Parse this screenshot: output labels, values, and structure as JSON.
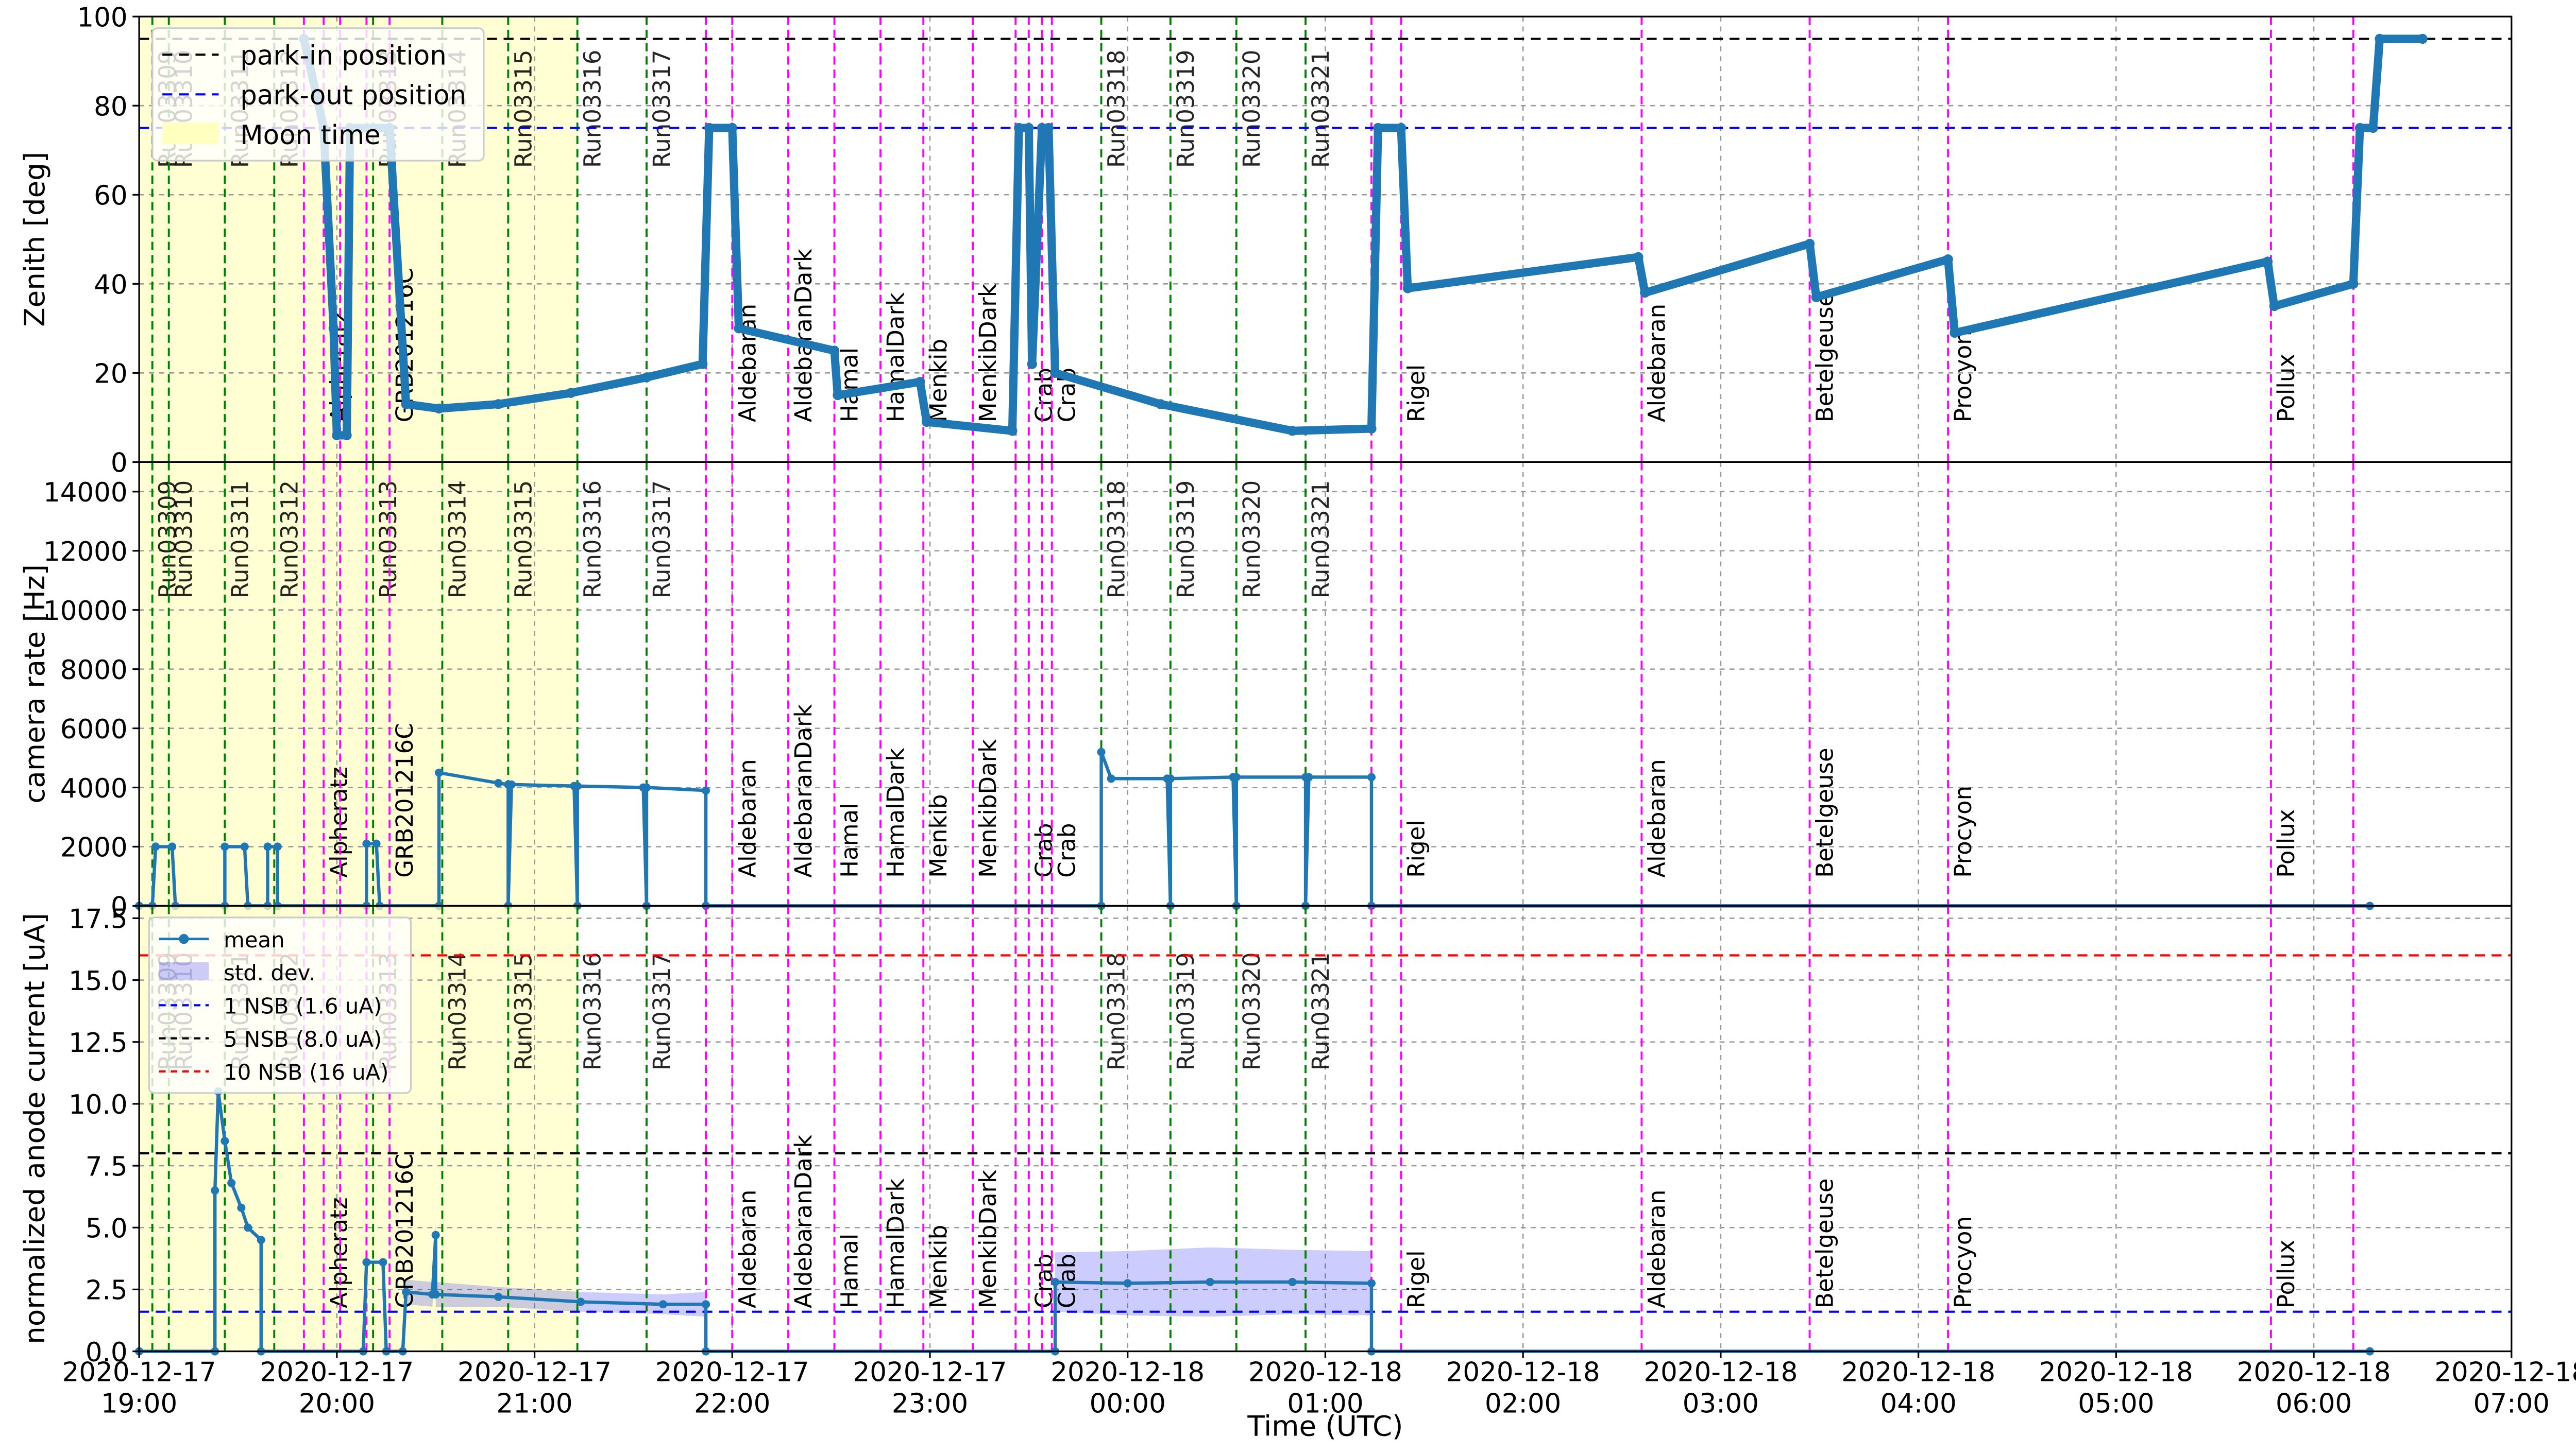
{
  "xaxis": {
    "label": "Time (UTC)",
    "lim": [
      "2020-12-17 19:00",
      "2020-12-18 07:00"
    ],
    "ticks": [
      {
        "value": "2020-12-17 19:00",
        "label": "2020-12-17\n19:00"
      },
      {
        "value": "2020-12-17 20:00",
        "label": "2020-12-17\n20:00"
      },
      {
        "value": "2020-12-17 21:00",
        "label": "2020-12-17\n21:00"
      },
      {
        "value": "2020-12-17 22:00",
        "label": "2020-12-17\n22:00"
      },
      {
        "value": "2020-12-17 23:00",
        "label": "2020-12-17\n23:00"
      },
      {
        "value": "2020-12-18 00:00",
        "label": "2020-12-18\n00:00"
      },
      {
        "value": "2020-12-18 01:00",
        "label": "2020-12-18\n01:00"
      },
      {
        "value": "2020-12-18 02:00",
        "label": "2020-12-18\n02:00"
      },
      {
        "value": "2020-12-18 03:00",
        "label": "2020-12-18\n03:00"
      },
      {
        "value": "2020-12-18 04:00",
        "label": "2020-12-18\n04:00"
      },
      {
        "value": "2020-12-18 05:00",
        "label": "2020-12-18\n05:00"
      },
      {
        "value": "2020-12-18 06:00",
        "label": "2020-12-18\n06:00"
      },
      {
        "value": "2020-12-18 07:00",
        "label": "2020-12-18\n07:00"
      }
    ]
  },
  "markers": {
    "moon": {
      "label": "Moon time",
      "start": "2020-12-17 19:00",
      "end": "2020-12-17 21:13",
      "color": "#ffffc0"
    },
    "runs": {
      "color": "green",
      "items": [
        {
          "x": "2020-12-17 19:04",
          "label": "Run03309"
        },
        {
          "x": "2020-12-17 19:09",
          "label": "Run03310"
        },
        {
          "x": "2020-12-17 19:26",
          "label": "Run03311"
        },
        {
          "x": "2020-12-17 19:41",
          "label": "Run03312"
        },
        {
          "x": "2020-12-17 20:11",
          "label": "Run03313"
        },
        {
          "x": "2020-12-17 20:32",
          "label": "Run03314"
        },
        {
          "x": "2020-12-17 20:52",
          "label": "Run03315"
        },
        {
          "x": "2020-12-17 21:13",
          "label": "Run03316"
        },
        {
          "x": "2020-12-17 21:34",
          "label": "Run03317"
        },
        {
          "x": "2020-12-17 23:52",
          "label": "Run03318"
        },
        {
          "x": "2020-12-18 00:13",
          "label": "Run03319"
        },
        {
          "x": "2020-12-18 00:33",
          "label": "Run03320"
        },
        {
          "x": "2020-12-18 00:54",
          "label": "Run03321"
        }
      ]
    },
    "sources": {
      "color": "magenta",
      "items": [
        {
          "x": "2020-12-17 19:50"
        },
        {
          "x": "2020-12-17 19:56",
          "label": "Alpheratz"
        },
        {
          "x": "2020-12-17 20:01"
        },
        {
          "x": "2020-12-17 20:09"
        },
        {
          "x": "2020-12-17 20:16",
          "label": "GRB201216C"
        },
        {
          "x": "2020-12-17 21:52"
        },
        {
          "x": "2020-12-17 22:00",
          "label": "Aldebaran"
        },
        {
          "x": "2020-12-17 22:17",
          "label": "AldebaranDark"
        },
        {
          "x": "2020-12-17 22:31",
          "label": "Hamal"
        },
        {
          "x": "2020-12-17 22:45",
          "label": "HamalDark"
        },
        {
          "x": "2020-12-17 22:58",
          "label": "Menkib"
        },
        {
          "x": "2020-12-17 23:13",
          "label": "MenkibDark"
        },
        {
          "x": "2020-12-17 23:26"
        },
        {
          "x": "2020-12-17 23:30",
          "label": "Crab"
        },
        {
          "x": "2020-12-17 23:34"
        },
        {
          "x": "2020-12-17 23:37",
          "label": "Crab"
        },
        {
          "x": "2020-12-18 01:14"
        },
        {
          "x": "2020-12-18 01:23",
          "label": "Rigel"
        },
        {
          "x": "2020-12-18 02:36",
          "label": "Aldebaran"
        },
        {
          "x": "2020-12-18 03:27",
          "label": "Betelgeuse"
        },
        {
          "x": "2020-12-18 04:09",
          "label": "Procyon"
        },
        {
          "x": "2020-12-18 05:47",
          "label": "Pollux"
        },
        {
          "x": "2020-12-18 06:12"
        }
      ]
    }
  },
  "chart_data": [
    {
      "type": "line",
      "ylabel": "Zenith [deg]",
      "ylim": [
        0,
        100
      ],
      "yticks": [
        0,
        20,
        40,
        60,
        80,
        100
      ],
      "grid": true,
      "legend": "upper left",
      "hlines": [
        {
          "name": "park-in position",
          "value": 95,
          "color": "black"
        },
        {
          "name": "park-out position",
          "value": 75,
          "color": "blue"
        }
      ],
      "series": [
        {
          "color": "#1f77b4",
          "x": [
            "2020-12-17 19:50",
            "2020-12-17 19:56",
            "2020-12-17 19:59",
            "2020-12-17 20:00",
            "2020-12-17 20:03",
            "2020-12-17 20:04",
            "2020-12-17 20:16",
            "2020-12-17 20:21",
            "2020-12-17 20:31",
            "2020-12-17 20:49",
            "2020-12-17 21:11",
            "2020-12-17 21:34",
            "2020-12-17 21:51",
            "2020-12-17 21:53",
            "2020-12-17 22:00",
            "2020-12-17 22:02",
            "2020-12-17 22:31",
            "2020-12-17 22:32",
            "2020-12-17 22:57",
            "2020-12-17 22:59",
            "2020-12-17 23:25",
            "2020-12-17 23:27",
            "2020-12-17 23:30",
            "2020-12-17 23:31",
            "2020-12-17 23:34",
            "2020-12-17 23:36",
            "2020-12-17 23:38",
            "2020-12-18 00:10",
            "2020-12-18 00:50",
            "2020-12-18 01:14",
            "2020-12-18 01:16",
            "2020-12-18 01:23",
            "2020-12-18 01:25",
            "2020-12-18 02:35",
            "2020-12-18 02:37",
            "2020-12-18 03:27",
            "2020-12-18 03:29",
            "2020-12-18 04:09",
            "2020-12-18 04:11",
            "2020-12-18 05:46",
            "2020-12-18 05:48",
            "2020-12-18 06:12",
            "2020-12-18 06:14",
            "2020-12-18 06:18",
            "2020-12-18 06:20",
            "2020-12-18 06:33"
          ],
          "values": [
            95,
            75,
            30,
            6,
            6,
            75,
            75,
            13,
            12,
            13,
            15.5,
            19,
            22,
            75,
            75,
            30,
            25,
            15,
            18,
            9,
            7,
            75,
            75,
            22,
            75,
            75,
            20,
            13,
            7,
            7.5,
            75,
            75,
            39,
            46,
            38,
            49,
            37,
            45.5,
            29,
            45,
            35,
            40,
            75,
            75,
            95,
            95
          ]
        }
      ]
    },
    {
      "type": "line",
      "ylabel": "camera rate [Hz]",
      "ylim": [
        0,
        15000
      ],
      "yticks": [
        0,
        2000,
        4000,
        6000,
        8000,
        10000,
        12000,
        14000
      ],
      "grid": true,
      "series": [
        {
          "color": "#1f77b4",
          "x": [
            "2020-12-17 19:00",
            "2020-12-17 19:04",
            "2020-12-17 19:05",
            "2020-12-17 19:10",
            "2020-12-17 19:11",
            "2020-12-17 19:26",
            "2020-12-17 19:26",
            "2020-12-17 19:32",
            "2020-12-17 19:33",
            "2020-12-17 19:39",
            "2020-12-17 19:39",
            "2020-12-17 19:42",
            "2020-12-17 19:42",
            "2020-12-17 20:09",
            "2020-12-17 20:09",
            "2020-12-17 20:12",
            "2020-12-17 20:13",
            "2020-12-17 20:31",
            "2020-12-17 20:31",
            "2020-12-17 20:49",
            "2020-12-17 20:52",
            "2020-12-17 20:52",
            "2020-12-17 20:53",
            "2020-12-17 21:12",
            "2020-12-17 21:13",
            "2020-12-17 21:13",
            "2020-12-17 21:33",
            "2020-12-17 21:34",
            "2020-12-17 21:34",
            "2020-12-17 21:52",
            "2020-12-17 21:52",
            "2020-12-17 23:52",
            "2020-12-17 23:52",
            "2020-12-17 23:55",
            "2020-12-18 00:12",
            "2020-12-18 00:13",
            "2020-12-18 00:13",
            "2020-12-18 00:32",
            "2020-12-18 00:33",
            "2020-12-18 00:33",
            "2020-12-18 00:54",
            "2020-12-18 00:54",
            "2020-12-18 00:55",
            "2020-12-18 01:14",
            "2020-12-18 01:14",
            "2020-12-18 06:17"
          ],
          "values": [
            0,
            0,
            2000,
            2000,
            0,
            0,
            2000,
            2000,
            0,
            0,
            2000,
            2000,
            0,
            0,
            2100,
            2100,
            0,
            0,
            4500,
            4150,
            4100,
            0,
            4100,
            4050,
            0,
            4050,
            4000,
            0,
            4000,
            3900,
            0,
            0,
            5200,
            4300,
            4300,
            0,
            4300,
            4350,
            0,
            4350,
            4350,
            0,
            4350,
            4350,
            0,
            0
          ]
        }
      ]
    },
    {
      "type": "line",
      "ylabel": "normalized anode current [uA]",
      "ylim": [
        0,
        18
      ],
      "yticks": [
        {
          "value": 0,
          "label": "0.0"
        },
        2.5,
        {
          "value": 5,
          "label": "5.0"
        },
        7.5,
        {
          "value": 10,
          "label": "10.0"
        },
        12.5,
        {
          "value": 15,
          "label": "15.0"
        },
        17.5
      ],
      "grid": true,
      "legend": "upper left",
      "hlines": [
        {
          "name": "1 NSB (1.6 uA)",
          "value": 1.6,
          "color": "blue"
        },
        {
          "name": "5 NSB (8.0 uA)",
          "value": 8.0,
          "color": "black"
        },
        {
          "name": "10 NSB (16 uA)",
          "value": 16,
          "color": "red"
        }
      ],
      "series": [
        {
          "name": "mean",
          "color": "#1f77b4",
          "x": [
            "2020-12-17 19:00",
            "2020-12-17 19:23",
            "2020-12-17 19:23",
            "2020-12-17 19:24",
            "2020-12-17 19:26",
            "2020-12-17 19:28",
            "2020-12-17 19:31",
            "2020-12-17 19:33",
            "2020-12-17 19:37",
            "2020-12-17 19:37",
            "2020-12-17 20:08",
            "2020-12-17 20:09",
            "2020-12-17 20:14",
            "2020-12-17 20:15",
            "2020-12-17 20:20",
            "2020-12-17 20:21",
            "2020-12-17 20:29",
            "2020-12-17 20:30",
            "2020-12-17 20:30",
            "2020-12-17 20:49",
            "2020-12-17 21:14",
            "2020-12-17 21:39",
            "2020-12-17 21:52",
            "2020-12-17 21:52",
            "2020-12-17 23:38",
            "2020-12-17 23:38",
            "2020-12-18 00:00",
            "2020-12-18 00:25",
            "2020-12-18 00:50",
            "2020-12-18 01:14",
            "2020-12-18 01:14",
            "2020-12-18 06:17"
          ],
          "values": [
            0,
            0,
            6.5,
            10.5,
            8.5,
            6.8,
            5.8,
            5.0,
            4.5,
            0,
            0,
            3.6,
            3.6,
            0,
            0,
            2.4,
            2.3,
            4.7,
            2.3,
            2.2,
            2.0,
            1.9,
            1.9,
            0,
            0,
            2.8,
            2.75,
            2.8,
            2.8,
            2.75,
            0,
            0
          ]
        }
      ],
      "band": {
        "name": "std. dev.",
        "color": "#0000ff",
        "values": [
          0,
          0,
          0,
          0,
          0,
          0,
          0,
          0,
          0,
          0,
          0,
          0,
          0,
          0,
          0,
          0.5,
          0.5,
          0.5,
          0.5,
          0.4,
          0.4,
          0.4,
          0.5,
          0,
          0,
          1.2,
          1.3,
          1.4,
          1.3,
          1.3,
          0,
          0
        ]
      }
    }
  ]
}
